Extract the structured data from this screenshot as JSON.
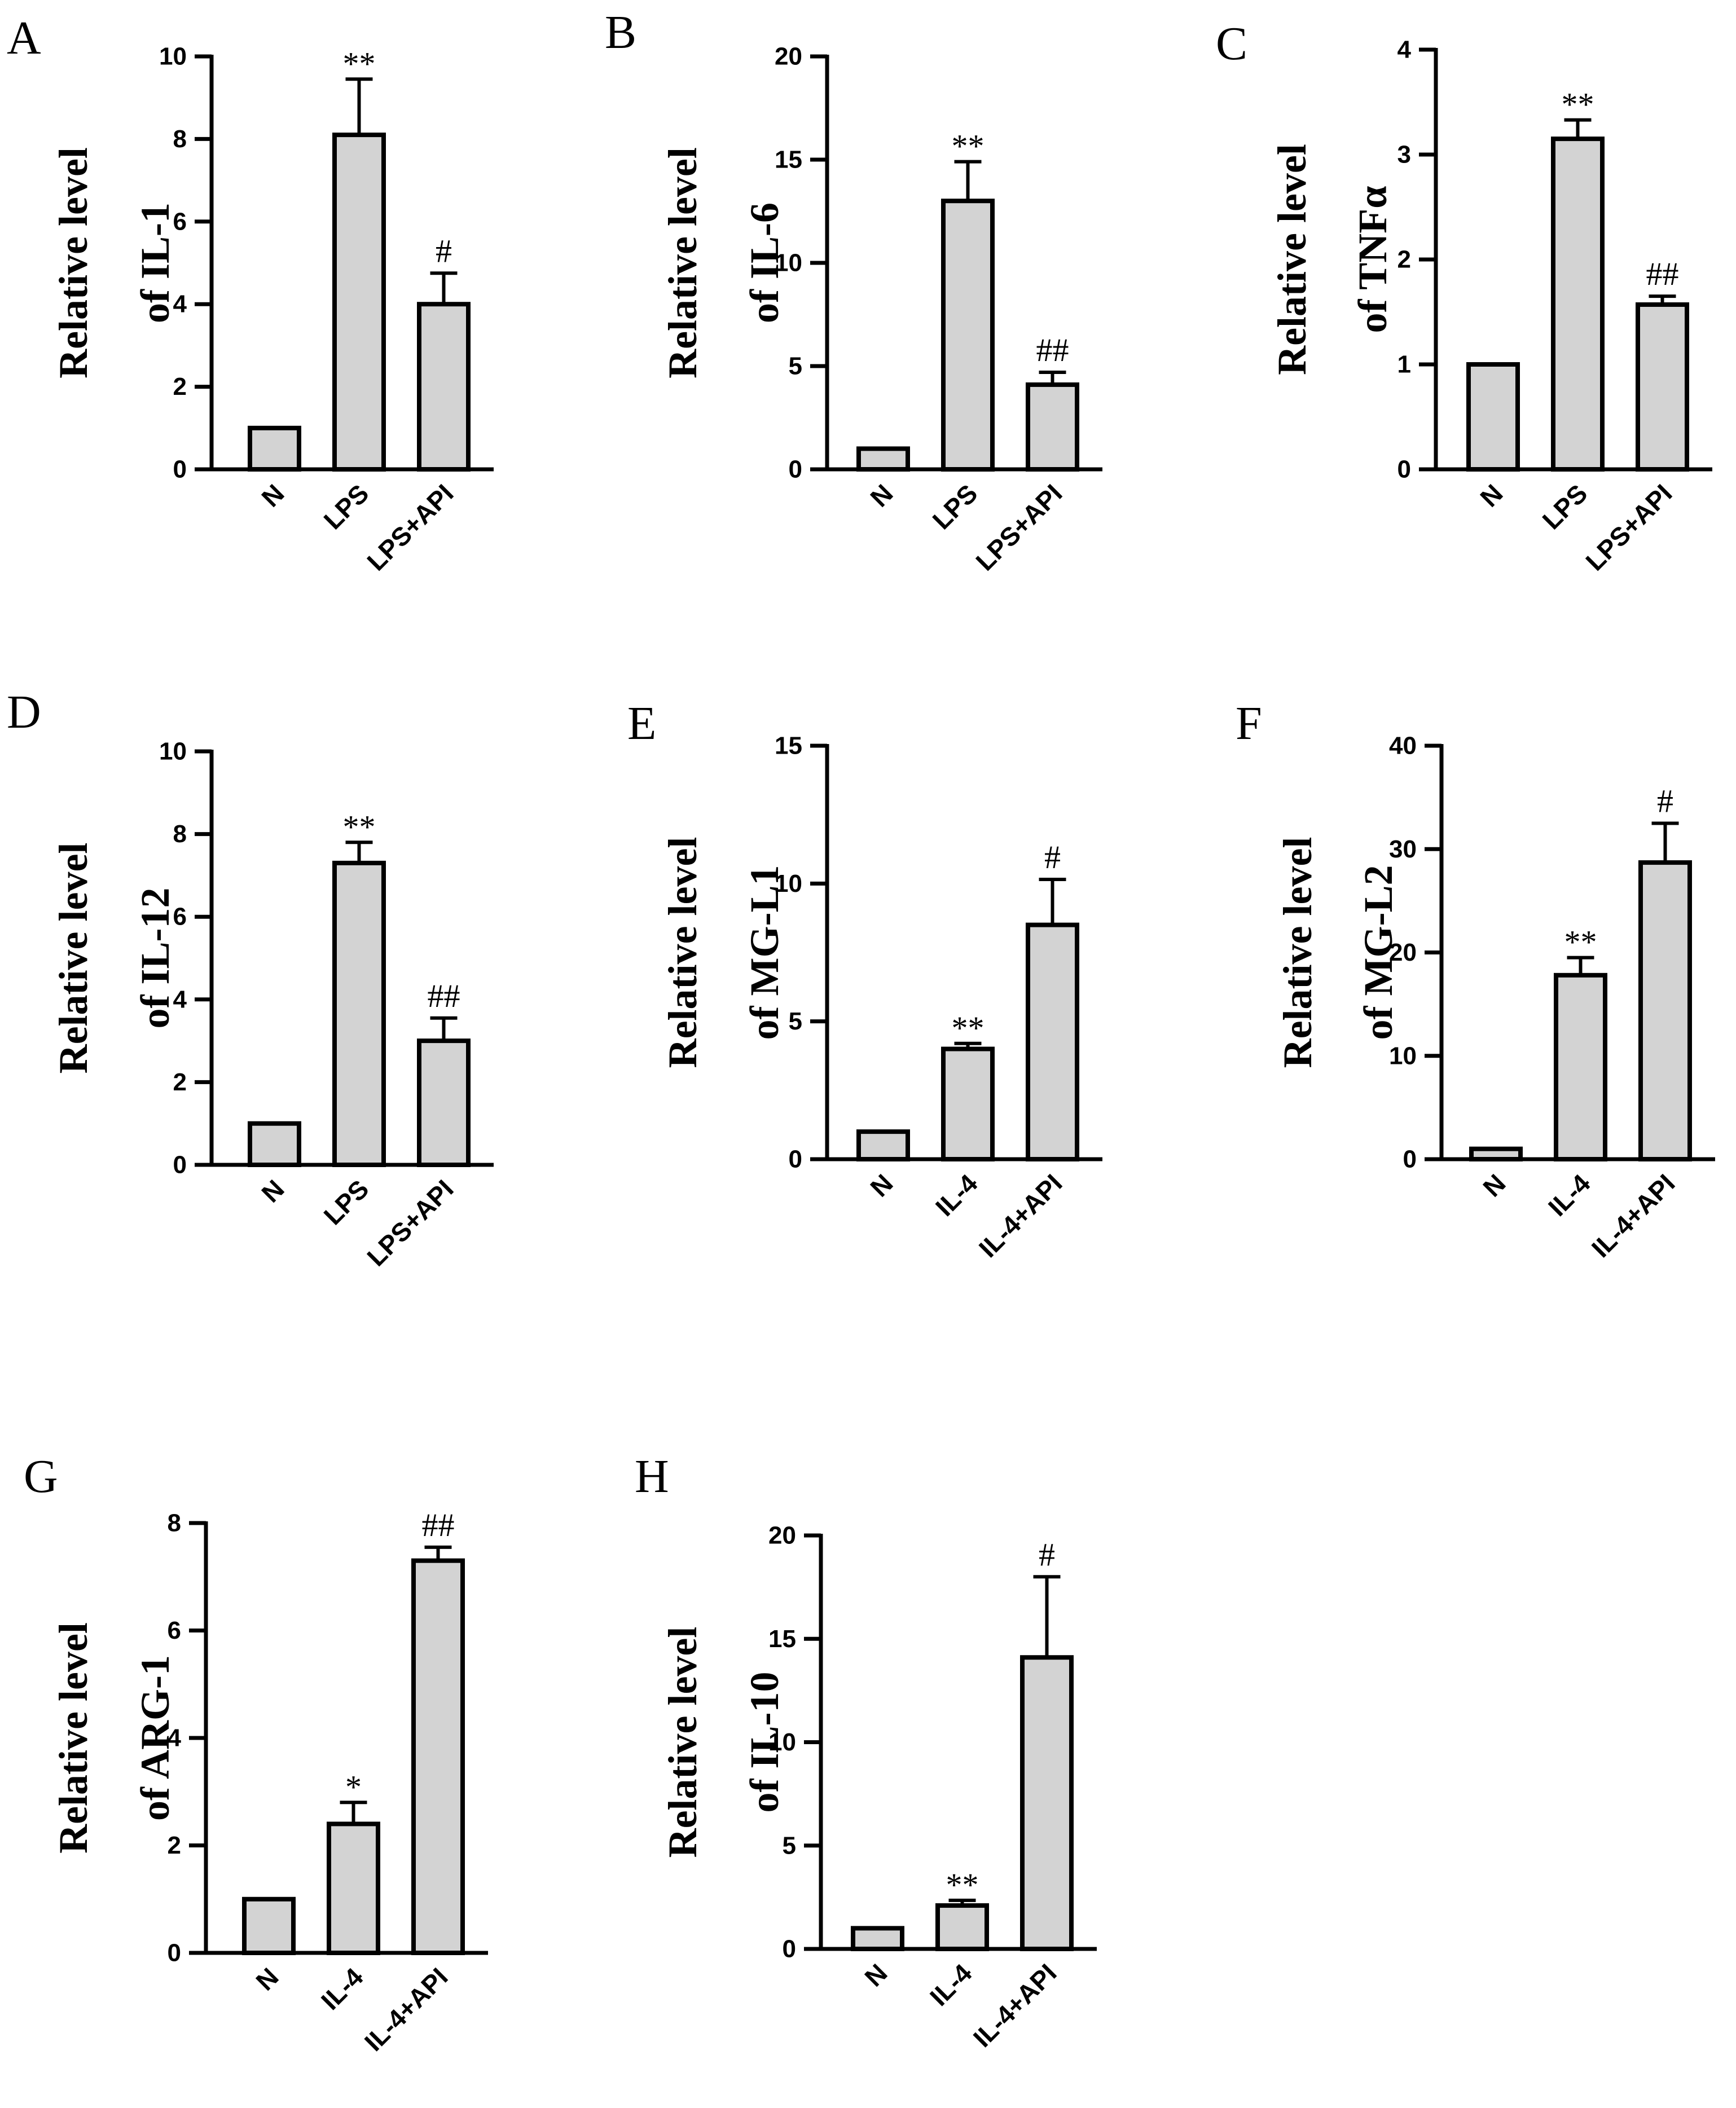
{
  "chart_data": [
    {
      "panel": "A",
      "type": "bar",
      "ylabel": [
        "Relative level",
        "of IL-1"
      ],
      "categories": [
        "N",
        "LPS",
        "LPS+API"
      ],
      "values": [
        1,
        8.1,
        4.0
      ],
      "errors": [
        0,
        1.35,
        0.75
      ],
      "annotations": [
        "",
        "**",
        "#"
      ],
      "ylim": [
        0,
        10
      ],
      "yticks": [
        "0",
        "2",
        "4",
        "6",
        "8",
        "10"
      ]
    },
    {
      "panel": "B",
      "type": "bar",
      "ylabel": [
        "Relative level",
        "of IL-6"
      ],
      "categories": [
        "N",
        "LPS",
        "LPS+API"
      ],
      "values": [
        1,
        13.0,
        4.1
      ],
      "errors": [
        0,
        1.9,
        0.6
      ],
      "annotations": [
        "",
        "**",
        "##"
      ],
      "ylim": [
        0,
        20
      ],
      "yticks": [
        "0",
        "5",
        "10",
        "15",
        "20"
      ]
    },
    {
      "panel": "C",
      "type": "bar",
      "ylabel": [
        "Relative level",
        "of TNFα"
      ],
      "categories": [
        "N",
        "LPS",
        "LPS+API"
      ],
      "values": [
        1,
        3.15,
        1.57
      ],
      "errors": [
        0,
        0.18,
        0.08
      ],
      "annotations": [
        "",
        "**",
        "##"
      ],
      "ylim": [
        0,
        4
      ],
      "yticks": [
        "0",
        "1",
        "2",
        "3",
        "4"
      ]
    },
    {
      "panel": "D",
      "type": "bar",
      "ylabel": [
        "Relative level",
        "of IL-12"
      ],
      "categories": [
        "N",
        "LPS",
        "LPS+API"
      ],
      "values": [
        1,
        7.3,
        3.0
      ],
      "errors": [
        0,
        0.5,
        0.55
      ],
      "annotations": [
        "",
        "**",
        "##"
      ],
      "ylim": [
        0,
        10
      ],
      "yticks": [
        "0",
        "2",
        "4",
        "6",
        "8",
        "10"
      ]
    },
    {
      "panel": "E",
      "type": "bar",
      "ylabel": [
        "Relative level",
        "of MG-L1"
      ],
      "categories": [
        "N",
        "IL-4",
        "IL-4+API"
      ],
      "values": [
        1,
        4.0,
        8.5
      ],
      "errors": [
        0,
        0.2,
        1.65
      ],
      "annotations": [
        "",
        "**",
        "#"
      ],
      "ylim": [
        0,
        15
      ],
      "yticks": [
        "0",
        "5",
        "10",
        "15"
      ]
    },
    {
      "panel": "F",
      "type": "bar",
      "ylabel": [
        "Relative level",
        "of MG-L2"
      ],
      "categories": [
        "N",
        "IL-4",
        "IL-4+API"
      ],
      "values": [
        1,
        17.8,
        28.7
      ],
      "errors": [
        0,
        1.7,
        3.8
      ],
      "annotations": [
        "",
        "**",
        "#"
      ],
      "ylim": [
        0,
        40
      ],
      "yticks": [
        "0",
        "10",
        "20",
        "30",
        "40"
      ]
    },
    {
      "panel": "G",
      "type": "bar",
      "ylabel": [
        "Relative level",
        "of ARG-1"
      ],
      "categories": [
        "N",
        "IL-4",
        "IL-4+API"
      ],
      "values": [
        1,
        2.4,
        7.3
      ],
      "errors": [
        0,
        0.4,
        0.25
      ],
      "annotations": [
        "",
        "*",
        "##"
      ],
      "ylim": [
        0,
        8
      ],
      "yticks": [
        "0",
        "2",
        "4",
        "6",
        "8"
      ]
    },
    {
      "panel": "H",
      "type": "bar",
      "ylabel": [
        "Relative level",
        "of IL-10"
      ],
      "categories": [
        "N",
        "IL-4",
        "IL-4+API"
      ],
      "values": [
        1,
        2.1,
        14.1
      ],
      "errors": [
        0,
        0.25,
        3.9
      ],
      "annotations": [
        "",
        "**",
        "#"
      ],
      "ylim": [
        0,
        20
      ],
      "yticks": [
        "0",
        "5",
        "10",
        "15",
        "20"
      ]
    }
  ]
}
